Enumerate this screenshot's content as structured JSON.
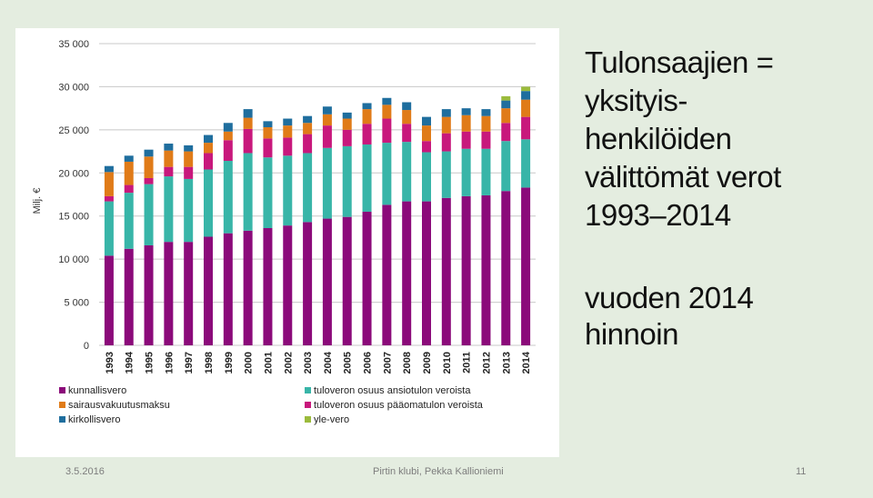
{
  "slide": {
    "title_lines": [
      "Tulonsaajien =",
      "yksityis-",
      "henkilöiden",
      "välittömät verot",
      "1993–2014"
    ],
    "subtitle_lines": [
      "vuoden 2014",
      "hinnoin"
    ],
    "footer": {
      "date": "3.5.2016",
      "center": "Pirtin klubi, Pekka Kallioniemi",
      "page": "11"
    }
  },
  "chart_data": {
    "type": "bar",
    "stacked": true,
    "ylabel": "Milj. €",
    "ylim": [
      0,
      35000
    ],
    "yticks": [
      0,
      5000,
      10000,
      15000,
      20000,
      25000,
      30000,
      35000
    ],
    "ytick_labels": [
      "0",
      "5 000",
      "10 000",
      "15 000",
      "20 000",
      "25 000",
      "30 000",
      "35 000"
    ],
    "grid": true,
    "legend_position": "bottom",
    "categories": [
      "1993",
      "1994",
      "1995",
      "1996",
      "1997",
      "1998",
      "1999",
      "2000",
      "2001",
      "2002",
      "2003",
      "2004",
      "2005",
      "2006",
      "2007",
      "2008",
      "2009",
      "2010",
      "2011",
      "2012",
      "2013",
      "2014"
    ],
    "series": [
      {
        "name": "kunnallisvero",
        "color": "#8b0a7a",
        "values": [
          10400,
          11200,
          11600,
          12000,
          12000,
          12600,
          13000,
          13300,
          13600,
          13900,
          14300,
          14700,
          14900,
          15500,
          16300,
          16700,
          16700,
          17100,
          17300,
          17400,
          17900,
          18300
        ]
      },
      {
        "name": "tuloveron osuus ansiotulon veroista",
        "color": "#38b5a8",
        "values": [
          6300,
          6500,
          7100,
          7600,
          7300,
          7800,
          8400,
          9000,
          8200,
          8100,
          8000,
          8200,
          8200,
          7800,
          7200,
          6900,
          5700,
          5400,
          5500,
          5400,
          5800,
          5600
        ]
      },
      {
        "name": "tuloveron osuus pääomatulon veroista",
        "color": "#c8187c",
        "values": [
          600,
          900,
          700,
          1100,
          1400,
          1900,
          2400,
          2800,
          2200,
          2100,
          2200,
          2600,
          1900,
          2400,
          2800,
          2100,
          1300,
          2100,
          2000,
          2000,
          2100,
          2600
        ]
      },
      {
        "name": "sairausvakuutusmaksu",
        "color": "#e07b18",
        "values": [
          2800,
          2700,
          2500,
          1900,
          1800,
          1200,
          1000,
          1300,
          1300,
          1400,
          1300,
          1300,
          1300,
          1700,
          1600,
          1600,
          1800,
          1900,
          1900,
          1800,
          1700,
          2000
        ]
      },
      {
        "name": "kirkollisvero",
        "color": "#1f6e9e",
        "values": [
          700,
          700,
          800,
          800,
          700,
          900,
          1000,
          1000,
          700,
          800,
          800,
          900,
          700,
          700,
          800,
          900,
          1000,
          900,
          800,
          800,
          900,
          1000
        ]
      },
      {
        "name": "yle-vero",
        "color": "#9bbb3c",
        "values": [
          0,
          0,
          0,
          0,
          0,
          0,
          0,
          0,
          0,
          0,
          0,
          0,
          0,
          0,
          0,
          0,
          0,
          0,
          0,
          0,
          500,
          500
        ]
      }
    ],
    "legend_left": [
      "kunnallisvero",
      "sairausvakuutusmaksu",
      "kirkollisvero"
    ],
    "legend_right": [
      "tuloveron osuus ansiotulon veroista",
      "tuloveron osuus pääomatulon veroista",
      "yle-vero"
    ]
  }
}
